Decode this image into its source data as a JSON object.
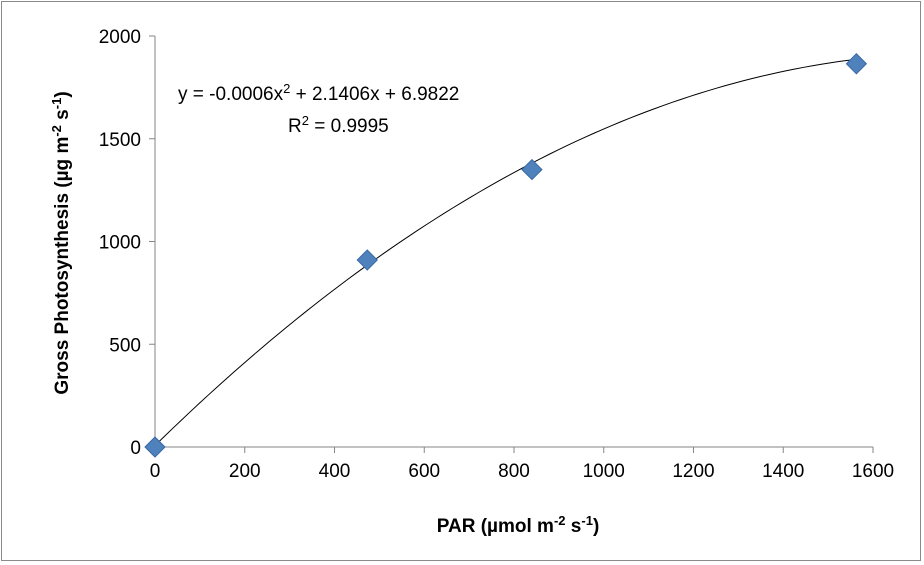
{
  "chart_data": {
    "type": "scatter",
    "title": "",
    "xlabel": "PAR (µmol m-2 s-1)",
    "ylabel": "Gross Photosynthesis (µg m-2 s-1)",
    "xlabel_parts": {
      "pre": "PAR (µmol m",
      "sup1": "-2",
      "mid": " s",
      "sup2": "-1",
      "post": ")"
    },
    "ylabel_parts": {
      "pre": "Gross Photosynthesis (µg m",
      "sup1": "-2",
      "mid": " s",
      "sup2": "-1",
      "post": ")"
    },
    "xlim": [
      0,
      1600
    ],
    "ylim": [
      0,
      2000
    ],
    "xticks": [
      "0",
      "200",
      "400",
      "600",
      "800",
      "1000",
      "1200",
      "1400",
      "1600"
    ],
    "yticks": [
      "0",
      "500",
      "1000",
      "1500",
      "2000"
    ],
    "grid": false,
    "legend": false,
    "series": [
      {
        "points": [
          {
            "x": 0,
            "y": 0
          },
          {
            "x": 473,
            "y": 910
          },
          {
            "x": 840,
            "y": 1350
          },
          {
            "x": 1563,
            "y": 1865
          }
        ],
        "marker": "diamond",
        "color": "#4f81bd"
      }
    ],
    "trendline": {
      "type": "polynomial",
      "coefficients": {
        "a": -0.0006,
        "b": 2.1406,
        "c": 6.9822
      },
      "x_range": [
        0,
        1563
      ],
      "color": "#000000"
    },
    "annotations": {
      "equation": {
        "pre": "y = -0.0006x",
        "sup": "2",
        "post": " + 2.1406x + 6.9822"
      },
      "r2": {
        "pre": "R",
        "sup": "2",
        "post": " = 0.9995"
      }
    }
  }
}
